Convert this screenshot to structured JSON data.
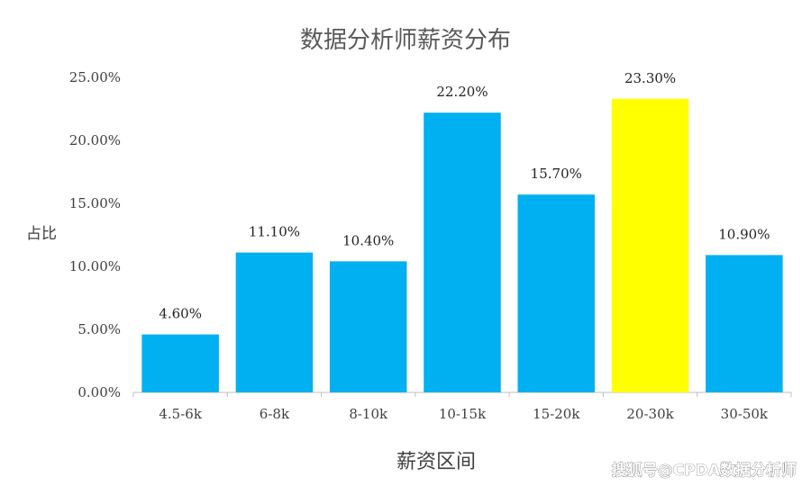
{
  "chart_data": {
    "type": "bar",
    "title": "数据分析师薪资分布",
    "xlabel": "薪资区间",
    "ylabel": "占比",
    "categories": [
      "4.5-6k",
      "6-8k",
      "8-10k",
      "10-15k",
      "15-20k",
      "20-30k",
      "30-50k"
    ],
    "values": [
      4.6,
      11.1,
      10.4,
      22.2,
      15.7,
      23.3,
      10.9
    ],
    "data_labels": [
      "4.60%",
      "11.10%",
      "10.40%",
      "22.20%",
      "15.70%",
      "23.30%",
      "10.90%"
    ],
    "ylim": [
      0,
      25
    ],
    "yticks": [
      0,
      5,
      10,
      15,
      20,
      25
    ],
    "ytick_labels": [
      "0.00%",
      "5.00%",
      "10.00%",
      "15.00%",
      "20.00%",
      "25.00%"
    ],
    "grid": false,
    "legend": "none",
    "colors": {
      "bar": "#00b0f0",
      "highlight_bar": "#ffff00",
      "axis": "#bfbfbf"
    },
    "highlight_index": 5
  },
  "watermark": "搜狐号@CPDA数据分析师"
}
